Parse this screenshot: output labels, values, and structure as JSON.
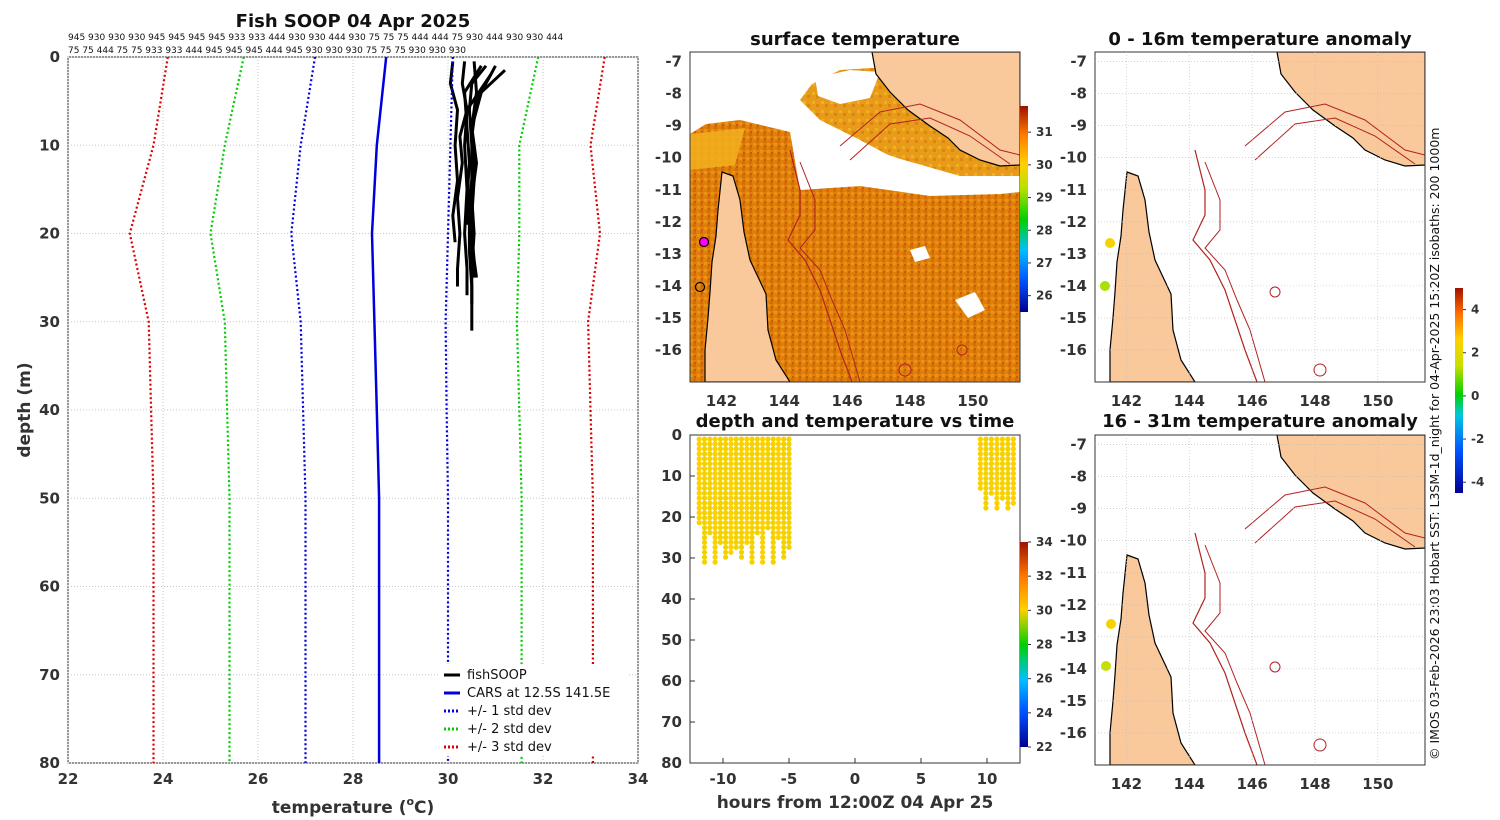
{
  "chart_data": [
    {
      "type": "line",
      "title": "Fish SOOP 04 Apr 2025",
      "xlabel": "temperature (°C)",
      "xlabel_main": "temperature (",
      "xlabel_unit": "C)",
      "ylabel": "depth (m)",
      "xlim": [
        22,
        34
      ],
      "ylim": [
        0,
        80
      ],
      "y_reversed": true,
      "x_ticks": [
        22,
        24,
        26,
        28,
        30,
        32,
        34
      ],
      "y_ticks": [
        0,
        10,
        20,
        30,
        40,
        50,
        60,
        70,
        80
      ],
      "grid": true,
      "top_tick_labels_row1": "945 930 930 930 945 945 945 945 933 933 444 930 930 444 930 75 75 75 444 444 75 930 444 930 930 444",
      "top_tick_labels_row2": "75 75 444 75 75 933 933 444 945 945 945 444 945 930 930 930 75 75 75 930 930 930",
      "legend_location": "bottom-right",
      "series": [
        {
          "name": "fishSOOP",
          "color": "#000000",
          "style": "solid",
          "profiles": [
            {
              "depth": [
                0.5,
                3,
                6,
                9,
                12,
                16,
                20,
                24,
                26
              ],
              "temp": [
                30.35,
                30.3,
                30.4,
                30.25,
                30.3,
                30.2,
                30.25,
                30.2,
                30.2
              ]
            },
            {
              "depth": [
                0.5,
                4,
                8,
                12,
                16,
                20,
                23,
                25
              ],
              "temp": [
                30.55,
                30.6,
                30.5,
                30.55,
                30.45,
                30.5,
                30.55,
                30.6
              ]
            },
            {
              "depth": [
                1,
                3,
                6,
                10,
                14,
                18,
                22,
                26,
                28
              ],
              "temp": [
                30.8,
                30.5,
                30.45,
                30.5,
                30.5,
                30.45,
                30.45,
                30.5,
                30.5
              ]
            },
            {
              "depth": [
                1.5,
                4,
                8,
                12,
                16,
                20,
                24,
                28,
                31
              ],
              "temp": [
                31.2,
                30.7,
                30.5,
                30.6,
                30.5,
                30.55,
                30.5,
                30.5,
                30.5
              ]
            },
            {
              "depth": [
                1,
                5,
                9,
                14,
                18,
                22,
                25
              ],
              "temp": [
                31.0,
                30.6,
                30.5,
                30.55,
                30.5,
                30.5,
                30.55
              ]
            },
            {
              "depth": [
                2,
                6,
                10,
                15,
                20,
                24,
                27
              ],
              "temp": [
                30.9,
                30.4,
                30.35,
                30.4,
                30.35,
                30.4,
                30.4
              ]
            },
            {
              "depth": [
                0.5,
                3,
                6,
                10,
                14,
                18,
                21
              ],
              "temp": [
                30.1,
                30.05,
                30.2,
                30.15,
                30.2,
                30.1,
                30.15
              ]
            },
            {
              "depth": [
                1,
                4,
                8,
                12,
                16,
                19
              ],
              "temp": [
                30.7,
                30.35,
                30.4,
                30.45,
                30.4,
                30.4
              ]
            }
          ]
        },
        {
          "name": "CARS at 12.5S 141.5E",
          "color": "#0000dd",
          "style": "solid",
          "depth": [
            0,
            10,
            20,
            30,
            40,
            50,
            60,
            70,
            80
          ],
          "temp": [
            28.7,
            28.5,
            28.4,
            28.45,
            28.5,
            28.55,
            28.55,
            28.55,
            28.55
          ]
        },
        {
          "name": "+/- 1 std dev",
          "color": "#0000dd",
          "style": "dotted",
          "depth": [
            0,
            10,
            20,
            30,
            40,
            50,
            60,
            70,
            80
          ],
          "lower": [
            27.2,
            26.9,
            26.7,
            26.9,
            26.95,
            27.0,
            27.0,
            27.0,
            27.0
          ],
          "upper": [
            30.1,
            30.05,
            30.0,
            29.95,
            29.97,
            30.0,
            30.0,
            30.0,
            30.0
          ]
        },
        {
          "name": "+/- 2 std dev",
          "color": "#00cc00",
          "style": "dotted",
          "depth": [
            0,
            10,
            20,
            30,
            40,
            50,
            60,
            70,
            80
          ],
          "lower": [
            25.7,
            25.3,
            25.0,
            25.3,
            25.35,
            25.4,
            25.4,
            25.4,
            25.4
          ],
          "upper": [
            31.9,
            31.5,
            31.5,
            31.45,
            31.5,
            31.55,
            31.55,
            31.55,
            31.55
          ]
        },
        {
          "name": "+/- 3 std dev",
          "color": "#dd0000",
          "style": "dotted",
          "depth": [
            0,
            10,
            20,
            30,
            40,
            50,
            60,
            70,
            80
          ],
          "lower": [
            24.1,
            23.8,
            23.3,
            23.7,
            23.75,
            23.8,
            23.8,
            23.8,
            23.8
          ],
          "upper": [
            33.3,
            33.0,
            33.2,
            32.95,
            33.0,
            33.05,
            33.05,
            33.05,
            33.05
          ]
        }
      ]
    },
    {
      "type": "heatmap",
      "title": "surface temperature",
      "x_ticks": [
        142,
        144,
        146,
        148,
        150
      ],
      "y_ticks": [
        -7,
        -8,
        -9,
        -10,
        -11,
        -12,
        -13,
        -14,
        -15,
        -16
      ],
      "xlim": [
        141,
        151.5
      ],
      "ylim": [
        -17,
        -6.7
      ],
      "colorbar": {
        "ticks": [
          26,
          27,
          28,
          29,
          30,
          31
        ],
        "range": [
          25.5,
          31.8
        ]
      }
    },
    {
      "type": "scatter",
      "title": "depth and temperature vs time",
      "xlabel": "hours from 12:00Z 04 Apr 25",
      "x_ticks": [
        -10,
        -5,
        0,
        5,
        10
      ],
      "y_ticks": [
        0,
        10,
        20,
        30,
        40,
        50,
        60,
        70,
        80
      ],
      "xlim": [
        -12.5,
        12.5
      ],
      "ylim": [
        0,
        80
      ],
      "y_reversed": true,
      "colorbar": {
        "ticks": [
          22,
          24,
          26,
          28,
          30,
          32,
          34
        ],
        "range": [
          22,
          34
        ]
      },
      "groups": [
        {
          "t_start": -11.8,
          "t_end": -5.0,
          "depth_max": 32,
          "temp": 30.3
        },
        {
          "t_start": 9.5,
          "t_end": 12.0,
          "depth_max": 19,
          "temp": 30.4
        }
      ]
    },
    {
      "type": "heatmap",
      "title": "0 - 16m temperature anomaly",
      "x_ticks": [
        142,
        144,
        146,
        148,
        150
      ],
      "y_ticks": [
        -7,
        -8,
        -9,
        -10,
        -11,
        -12,
        -13,
        -14,
        -15,
        -16
      ],
      "xlim": [
        141,
        151.5
      ],
      "ylim": [
        -17,
        -6.7
      ]
    },
    {
      "type": "heatmap",
      "title": "16 - 31m temperature anomaly",
      "x_ticks": [
        142,
        144,
        146,
        148,
        150
      ],
      "y_ticks": [
        -7,
        -8,
        -9,
        -10,
        -11,
        -12,
        -13,
        -14,
        -15,
        -16
      ],
      "xlim": [
        141,
        151.5
      ],
      "ylim": [
        -17,
        -6.7
      ],
      "colorbar": {
        "ticks": [
          4,
          2,
          0,
          -2,
          -4
        ],
        "range": [
          -4.5,
          5
        ]
      }
    }
  ],
  "credit": "© IMOS 03-Feb-2026 23:03 Hobart SST: L3SM-1d_night for 04-Apr-2025 15:20Z isobaths: 200  1000m",
  "colors": {
    "land": "#f9c89b",
    "coast": "#000000",
    "isobath": "#b22222"
  }
}
